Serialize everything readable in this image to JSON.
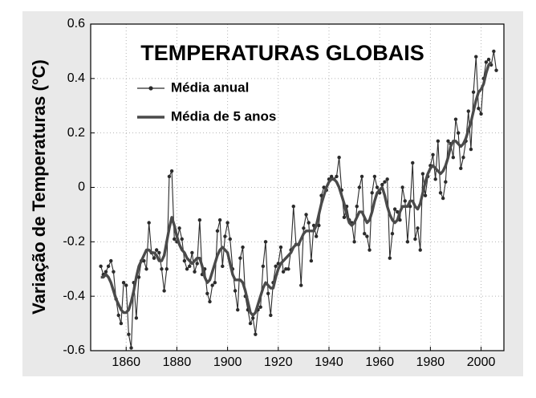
{
  "chart_data": {
    "type": "line",
    "title": "TEMPERATURAS GLOBAIS",
    "ylabel": "Variação de Temperaturas (°C)",
    "xlim": [
      1846,
      2009
    ],
    "ylim": [
      -0.6,
      0.6
    ],
    "xticks": [
      1860,
      1880,
      1900,
      1920,
      1940,
      1960,
      1980,
      2000
    ],
    "yticks": [
      -0.6,
      -0.4,
      -0.2,
      0,
      0.2,
      0.4,
      0.6
    ],
    "grid": true,
    "legend": "upper left",
    "x": [
      1850,
      1851,
      1852,
      1853,
      1854,
      1855,
      1856,
      1857,
      1858,
      1859,
      1860,
      1861,
      1862,
      1863,
      1864,
      1865,
      1866,
      1867,
      1868,
      1869,
      1870,
      1871,
      1872,
      1873,
      1874,
      1875,
      1876,
      1877,
      1878,
      1879,
      1880,
      1881,
      1882,
      1883,
      1884,
      1885,
      1886,
      1887,
      1888,
      1889,
      1890,
      1891,
      1892,
      1893,
      1894,
      1895,
      1896,
      1897,
      1898,
      1899,
      1900,
      1901,
      1902,
      1903,
      1904,
      1905,
      1906,
      1907,
      1908,
      1909,
      1910,
      1911,
      1912,
      1913,
      1914,
      1915,
      1916,
      1917,
      1918,
      1919,
      1920,
      1921,
      1922,
      1923,
      1924,
      1925,
      1926,
      1927,
      1928,
      1929,
      1930,
      1931,
      1932,
      1933,
      1934,
      1935,
      1936,
      1937,
      1938,
      1939,
      1940,
      1941,
      1942,
      1943,
      1944,
      1945,
      1946,
      1947,
      1948,
      1949,
      1950,
      1951,
      1952,
      1953,
      1954,
      1955,
      1956,
      1957,
      1958,
      1959,
      1960,
      1961,
      1962,
      1963,
      1964,
      1965,
      1966,
      1967,
      1968,
      1969,
      1970,
      1971,
      1972,
      1973,
      1974,
      1975,
      1976,
      1977,
      1978,
      1979,
      1980,
      1981,
      1982,
      1983,
      1984,
      1985,
      1986,
      1987,
      1988,
      1989,
      1990,
      1991,
      1992,
      1993,
      1994,
      1995,
      1996,
      1997,
      1998,
      1999,
      2000,
      2001,
      2002,
      2003,
      2004,
      2005,
      2006
    ],
    "series": [
      {
        "name": "Média anual",
        "color": "#2b2b2b",
        "markers": true,
        "values": [
          -0.29,
          -0.32,
          -0.31,
          -0.29,
          -0.27,
          -0.31,
          -0.41,
          -0.47,
          -0.5,
          -0.35,
          -0.36,
          -0.54,
          -0.59,
          -0.35,
          -0.48,
          -0.33,
          -0.27,
          -0.27,
          -0.3,
          -0.13,
          -0.24,
          -0.26,
          -0.23,
          -0.24,
          -0.3,
          -0.38,
          -0.3,
          0.04,
          0.06,
          -0.19,
          -0.2,
          -0.15,
          -0.19,
          -0.27,
          -0.3,
          -0.29,
          -0.24,
          -0.31,
          -0.28,
          -0.12,
          -0.32,
          -0.3,
          -0.39,
          -0.42,
          -0.36,
          -0.35,
          -0.16,
          -0.12,
          -0.29,
          -0.18,
          -0.13,
          -0.19,
          -0.3,
          -0.38,
          -0.45,
          -0.26,
          -0.22,
          -0.4,
          -0.45,
          -0.5,
          -0.48,
          -0.54,
          -0.45,
          -0.44,
          -0.29,
          -0.2,
          -0.39,
          -0.47,
          -0.35,
          -0.29,
          -0.28,
          -0.22,
          -0.31,
          -0.3,
          -0.3,
          -0.23,
          -0.07,
          -0.21,
          -0.21,
          -0.36,
          -0.15,
          -0.1,
          -0.13,
          -0.27,
          -0.14,
          -0.18,
          -0.14,
          -0.03,
          0.0,
          -0.01,
          0.03,
          0.04,
          0.03,
          0.04,
          0.11,
          -0.01,
          -0.11,
          -0.07,
          -0.12,
          -0.13,
          -0.2,
          -0.07,
          0.0,
          0.04,
          -0.17,
          -0.18,
          -0.23,
          -0.02,
          0.04,
          0.0,
          -0.02,
          0.01,
          0.02,
          0.03,
          -0.26,
          -0.17,
          -0.08,
          -0.09,
          -0.12,
          0.0,
          -0.05,
          -0.2,
          -0.07,
          0.09,
          -0.19,
          -0.15,
          -0.23,
          0.05,
          -0.03,
          0.04,
          0.08,
          0.12,
          0.03,
          0.17,
          -0.02,
          -0.04,
          0.02,
          0.17,
          0.16,
          0.11,
          0.25,
          0.2,
          0.07,
          0.11,
          0.17,
          0.28,
          0.14,
          0.35,
          0.48,
          0.29,
          0.27,
          0.4,
          0.46,
          0.47,
          0.45,
          0.5,
          0.43
        ]
      },
      {
        "name": "Média de 5 anos",
        "color": "#4a4a4a",
        "markers": false,
        "values": [
          -0.33,
          -0.33,
          -0.32,
          -0.33,
          -0.35,
          -0.38,
          -0.41,
          -0.43,
          -0.45,
          -0.46,
          -0.46,
          -0.45,
          -0.42,
          -0.38,
          -0.33,
          -0.29,
          -0.27,
          -0.25,
          -0.23,
          -0.23,
          -0.24,
          -0.24,
          -0.25,
          -0.27,
          -0.27,
          -0.25,
          -0.2,
          -0.15,
          -0.11,
          -0.14,
          -0.18,
          -0.21,
          -0.23,
          -0.24,
          -0.26,
          -0.27,
          -0.28,
          -0.27,
          -0.26,
          -0.26,
          -0.29,
          -0.33,
          -0.35,
          -0.34,
          -0.31,
          -0.28,
          -0.25,
          -0.23,
          -0.22,
          -0.23,
          -0.24,
          -0.28,
          -0.32,
          -0.34,
          -0.34,
          -0.34,
          -0.35,
          -0.38,
          -0.42,
          -0.46,
          -0.47,
          -0.46,
          -0.43,
          -0.4,
          -0.37,
          -0.35,
          -0.36,
          -0.37,
          -0.37,
          -0.33,
          -0.3,
          -0.28,
          -0.27,
          -0.26,
          -0.25,
          -0.24,
          -0.22,
          -0.21,
          -0.21,
          -0.19,
          -0.17,
          -0.16,
          -0.16,
          -0.16,
          -0.16,
          -0.14,
          -0.1,
          -0.06,
          -0.03,
          0.0,
          0.02,
          0.03,
          0.03,
          0.02,
          0.0,
          -0.03,
          -0.06,
          -0.1,
          -0.13,
          -0.14,
          -0.13,
          -0.11,
          -0.09,
          -0.09,
          -0.11,
          -0.13,
          -0.12,
          -0.09,
          -0.05,
          -0.02,
          -0.01,
          0.0,
          -0.03,
          -0.07,
          -0.1,
          -0.12,
          -0.13,
          -0.12,
          -0.09,
          -0.07,
          -0.07,
          -0.07,
          -0.05,
          -0.05,
          -0.07,
          -0.08,
          -0.06,
          -0.02,
          0.02,
          0.05,
          0.07,
          0.08,
          0.07,
          0.06,
          0.05,
          0.06,
          0.08,
          0.11,
          0.15,
          0.17,
          0.17,
          0.16,
          0.15,
          0.16,
          0.18,
          0.21,
          0.24,
          0.28,
          0.32,
          0.35,
          0.36,
          0.38,
          0.42,
          0.45,
          0.46,
          null,
          null
        ]
      }
    ]
  }
}
